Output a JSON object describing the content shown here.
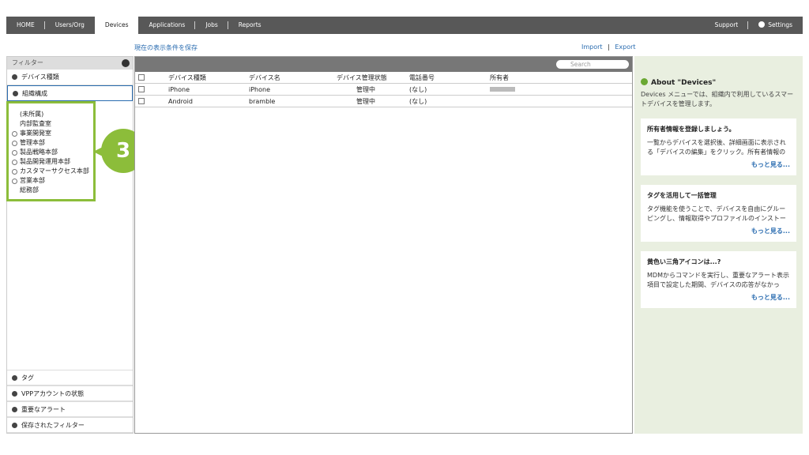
{
  "nav": {
    "tabs": [
      "HOME",
      "Users/Org",
      "Devices",
      "Applications",
      "Jobs",
      "Reports"
    ],
    "active": 2,
    "support": "Support",
    "settings": "Settings"
  },
  "toolbar": {
    "save_view": "現在の表示条件を保存",
    "import": "Import",
    "separator": "|",
    "export": "Export"
  },
  "filter": {
    "title": "フィルター",
    "top_sections": [
      "デバイス種類",
      "組織構成"
    ],
    "org_items": [
      {
        "label": "(未所属)",
        "expandable": false
      },
      {
        "label": "内部監査室",
        "expandable": false
      },
      {
        "label": "事業開発室",
        "expandable": true
      },
      {
        "label": "管理本部",
        "expandable": true
      },
      {
        "label": "製品戦略本部",
        "expandable": true
      },
      {
        "label": "製品開発運用本部",
        "expandable": true
      },
      {
        "label": "カスタマーサクセス本部",
        "expandable": true
      },
      {
        "label": "営業本部",
        "expandable": true
      },
      {
        "label": "総務部",
        "expandable": false
      }
    ],
    "callout": "3",
    "bottom_sections": [
      "タグ",
      "VPPアカウントの状態",
      "重要なアラート",
      "保存されたフィルター"
    ]
  },
  "table": {
    "search_placeholder": "Search",
    "columns": [
      "デバイス種類",
      "デバイス名",
      "デバイス管理状態",
      "電話番号",
      "所有者"
    ],
    "rows": [
      [
        "iPhone",
        "iPhone",
        "管理中",
        "(なし)"
      ],
      [
        "Android",
        "bramble",
        "管理中",
        "(なし)"
      ]
    ]
  },
  "about": {
    "title": "About \"Devices\"",
    "description": "Devices メニューでは、組織内で利用しているスマートデバイスを管理します。",
    "cards": [
      {
        "title": "所有者情報を登録しましょう。",
        "text": "一覧からデバイスを選択後、詳細画面に表示される「デバイスの編集」をクリック。所有者情報の",
        "more": "もっと見る..."
      },
      {
        "title": "タグを活用して一括管理",
        "text": "タグ機能を使うことで、デバイスを自由にグルーピングし、情報取得やプロファイルのインストー",
        "more": "もっと見る..."
      },
      {
        "title": "黄色い三角アイコンは...?",
        "text": "MDMからコマンドを実行し、重要なアラート表示項目で設定した期間、デバイスの応答がなかっ",
        "more": "もっと見る..."
      }
    ]
  }
}
